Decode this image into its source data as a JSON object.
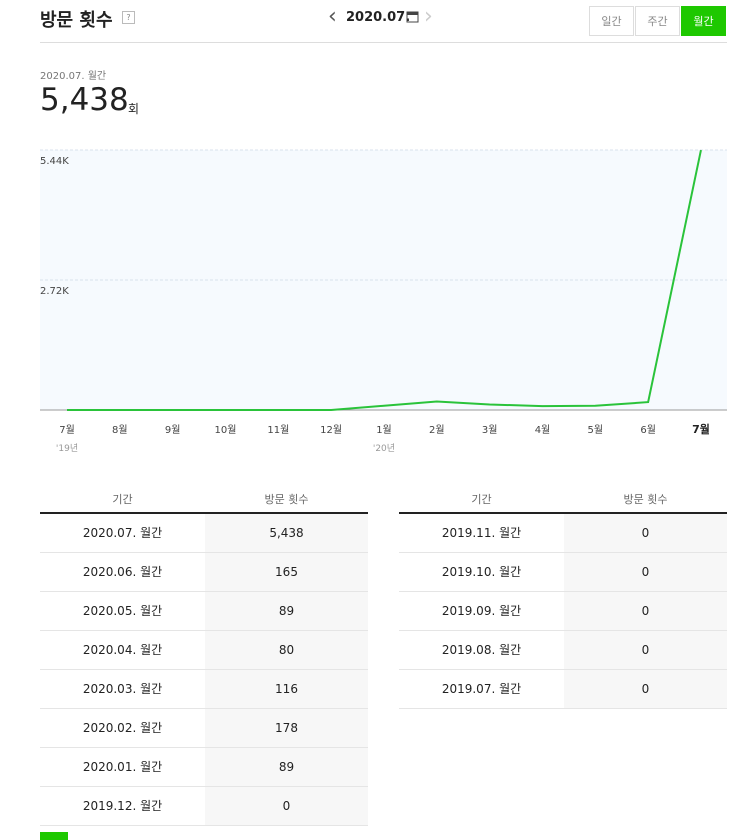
{
  "header": {
    "title": "방문 횟수",
    "help": "?",
    "date": "2020.07.",
    "tabs": [
      "일간",
      "주간",
      "월간"
    ],
    "active_tab": 2
  },
  "summary": {
    "period": "2020.07. 월간",
    "value": "5,438",
    "unit": "회"
  },
  "chart_data": {
    "type": "line",
    "categories": [
      "7월",
      "8월",
      "9월",
      "10월",
      "11월",
      "12월",
      "1월",
      "2월",
      "3월",
      "4월",
      "5월",
      "6월",
      "7월"
    ],
    "year_labels": [
      "'19년",
      null,
      null,
      null,
      null,
      null,
      "'20년",
      null,
      null,
      null,
      null,
      null,
      null
    ],
    "series": [
      {
        "name": "방문 횟수",
        "color": "#2ac33a",
        "values": [
          0,
          0,
          0,
          0,
          0,
          0,
          89,
          178,
          116,
          80,
          89,
          165,
          5438
        ]
      }
    ],
    "ylim": [
      0,
      5440
    ],
    "yticks": [
      {
        "value": 2720,
        "label": "2.72K"
      },
      {
        "value": 5440,
        "label": "5.44K"
      }
    ],
    "grid": true
  },
  "tables": [
    {
      "columns": [
        "기간",
        "방문 횟수"
      ],
      "rows": [
        [
          "2020.07. 월간",
          "5,438"
        ],
        [
          "2020.06. 월간",
          "165"
        ],
        [
          "2020.05. 월간",
          "89"
        ],
        [
          "2020.04. 월간",
          "80"
        ],
        [
          "2020.03. 월간",
          "116"
        ],
        [
          "2020.02. 월간",
          "178"
        ],
        [
          "2020.01. 월간",
          "89"
        ],
        [
          "2019.12. 월간",
          "0"
        ]
      ]
    },
    {
      "columns": [
        "기간",
        "방문 횟수"
      ],
      "rows": [
        [
          "2019.11. 월간",
          "0"
        ],
        [
          "2019.10. 월간",
          "0"
        ],
        [
          "2019.09. 월간",
          "0"
        ],
        [
          "2019.08. 월간",
          "0"
        ],
        [
          "2019.07. 월간",
          "0"
        ]
      ]
    }
  ]
}
